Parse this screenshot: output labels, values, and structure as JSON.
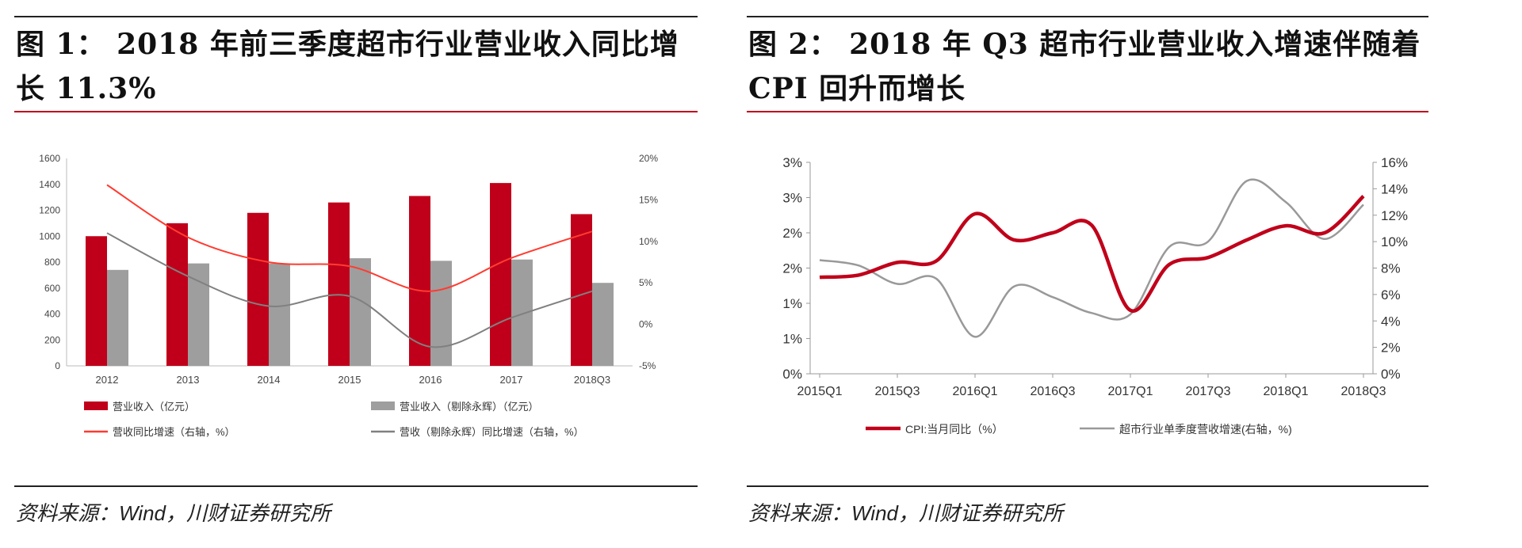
{
  "figure1": {
    "title": "图 1： 2018 年前三季度超市行业营业收入同比增长 11.3%",
    "source": "资料来源：Wind，川财证券研究所",
    "chart_data": {
      "type": "bar",
      "categories": [
        "2012",
        "2013",
        "2014",
        "2015",
        "2016",
        "2017",
        "2018Q3"
      ],
      "left_ticks": [
        "0",
        "200",
        "400",
        "600",
        "800",
        "1000",
        "1200",
        "1400",
        "1600"
      ],
      "right_ticks": [
        "-5%",
        "0%",
        "5%",
        "10%",
        "15%",
        "20%"
      ],
      "ylim": [
        0,
        1600
      ],
      "y2lim": [
        -5,
        20
      ],
      "series": [
        {
          "name": "营业收入（亿元）",
          "kind": "bar",
          "axis": "left",
          "color": "#c0001a",
          "values": [
            1000,
            1100,
            1180,
            1260,
            1310,
            1410,
            1170
          ]
        },
        {
          "name": "营业收入（剔除永辉）（亿元）",
          "kind": "bar",
          "axis": "left",
          "color": "#9e9e9e",
          "values": [
            740,
            790,
            790,
            830,
            810,
            820,
            640
          ]
        },
        {
          "name": "营收同比增速（右轴，%）",
          "kind": "line",
          "axis": "right",
          "color": "#ff3b30",
          "values": [
            16.8,
            10.5,
            7.5,
            7.0,
            4.0,
            8.0,
            11.2
          ]
        },
        {
          "name": "营收（剔除永辉）同比增速（右轴，%）",
          "kind": "line",
          "axis": "right",
          "color": "#808080",
          "values": [
            11.0,
            5.8,
            2.2,
            3.4,
            -2.7,
            0.8,
            4.0
          ]
        }
      ],
      "legend_position": "bottom"
    }
  },
  "figure2": {
    "title": "图 2： 2018 年 Q3 超市行业营业收入增速伴随着CPI 回升而增长",
    "source": "资料来源：Wind，川财证券研究所",
    "chart_data": {
      "type": "line",
      "x_ticks": [
        "2015Q1",
        "2015Q3",
        "2016Q1",
        "2016Q3",
        "2017Q1",
        "2017Q3",
        "2018Q1",
        "2018Q3"
      ],
      "left_ticks": [
        "0%",
        "1%",
        "1%",
        "2%",
        "2%",
        "3%",
        "3%"
      ],
      "right_ticks": [
        "0%",
        "2%",
        "4%",
        "6%",
        "8%",
        "10%",
        "12%",
        "14%",
        "16%"
      ],
      "ylim": [
        0,
        3
      ],
      "y2lim": [
        0,
        16
      ],
      "series": [
        {
          "name": "CPI:当月同比（%）",
          "axis": "left",
          "color": "#c0001a",
          "x": [
            0,
            0.5,
            1,
            1.5,
            2,
            2.5,
            3,
            3.5,
            4,
            4.5,
            5,
            5.5,
            6,
            6.5,
            7
          ],
          "values": [
            1.37,
            1.4,
            1.58,
            1.6,
            2.27,
            1.9,
            2.0,
            2.11,
            0.9,
            1.55,
            1.65,
            1.9,
            2.1,
            2.0,
            2.52
          ]
        },
        {
          "name": "超市行业单季度营收增速(右轴，%)",
          "axis": "right",
          "color": "#999999",
          "x": [
            0,
            0.5,
            1,
            1.5,
            2,
            2.5,
            3,
            3.5,
            4,
            4.5,
            5,
            5.5,
            6,
            6.5,
            7
          ],
          "values": [
            8.6,
            8.2,
            6.8,
            7.2,
            2.8,
            6.6,
            5.8,
            4.6,
            4.5,
            9.6,
            10.0,
            14.6,
            13.0,
            10.2,
            12.8
          ]
        }
      ],
      "legend_position": "bottom"
    }
  }
}
